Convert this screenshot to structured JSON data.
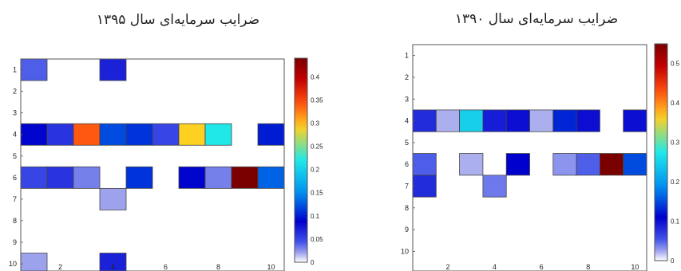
{
  "figure": {
    "colormap": [
      "#ffffff",
      "#c8c8f0",
      "#4050e8",
      "#0000cc",
      "#0090f0",
      "#20e8e8",
      "#ffd020",
      "#ff5010",
      "#c00000",
      "#7a0000"
    ]
  },
  "chart_data": [
    {
      "type": "heatmap",
      "title": "ضرایب سرمایه‌ای سال ۱۳۹۵",
      "xlabel": "",
      "ylabel": "",
      "x_ticks": [
        "2",
        "4",
        "6",
        "8",
        "10"
      ],
      "y_ticks": [
        "1",
        "2",
        "3",
        "4",
        "5",
        "6",
        "7",
        "8",
        "9",
        "10"
      ],
      "colorbar_ticks": [
        "0",
        "0.05",
        "0.1",
        "0.15",
        "0.2",
        "0.25",
        "0.3",
        "0.35",
        "0.4"
      ],
      "clim": [
        0,
        0.44
      ],
      "cells": [
        {
          "row": 1,
          "col": 1,
          "value": 0.04
        },
        {
          "row": 1,
          "col": 4,
          "value": 0.07
        },
        {
          "row": 4,
          "col": 1,
          "value": 0.09
        },
        {
          "row": 4,
          "col": 2,
          "value": 0.06
        },
        {
          "row": 4,
          "col": 3,
          "value": 0.34
        },
        {
          "row": 4,
          "col": 4,
          "value": 0.12
        },
        {
          "row": 4,
          "col": 5,
          "value": 0.11
        },
        {
          "row": 4,
          "col": 6,
          "value": 0.05
        },
        {
          "row": 4,
          "col": 7,
          "value": 0.29
        },
        {
          "row": 4,
          "col": 8,
          "value": 0.22
        },
        {
          "row": 4,
          "col": 10,
          "value": 0.1
        },
        {
          "row": 6,
          "col": 1,
          "value": 0.05
        },
        {
          "row": 6,
          "col": 2,
          "value": 0.06
        },
        {
          "row": 6,
          "col": 3,
          "value": 0.03
        },
        {
          "row": 6,
          "col": 5,
          "value": 0.11
        },
        {
          "row": 6,
          "col": 7,
          "value": 0.09
        },
        {
          "row": 6,
          "col": 8,
          "value": 0.03
        },
        {
          "row": 6,
          "col": 9,
          "value": 0.44
        },
        {
          "row": 6,
          "col": 10,
          "value": 0.13
        },
        {
          "row": 7,
          "col": 4,
          "value": 0.02
        },
        {
          "row": 10,
          "col": 1,
          "value": 0.02
        },
        {
          "row": 10,
          "col": 4,
          "value": 0.07
        }
      ]
    },
    {
      "type": "heatmap",
      "title": "ضرایب سرمایه‌ای سال ۱۳۹۰",
      "xlabel": "",
      "ylabel": "",
      "x_ticks": [
        "2",
        "4",
        "6",
        "8",
        "10"
      ],
      "y_ticks": [
        "1",
        "2",
        "3",
        "4",
        "5",
        "6",
        "7",
        "8",
        "9",
        "10"
      ],
      "colorbar_ticks": [
        "0",
        "0.1",
        "0.2",
        "0.3",
        "0.4",
        "0.5"
      ],
      "clim": [
        0,
        0.55
      ],
      "cells": [
        {
          "row": 4,
          "col": 1,
          "value": 0.08
        },
        {
          "row": 4,
          "col": 2,
          "value": 0.02
        },
        {
          "row": 4,
          "col": 3,
          "value": 0.25
        },
        {
          "row": 4,
          "col": 4,
          "value": 0.09
        },
        {
          "row": 4,
          "col": 5,
          "value": 0.1
        },
        {
          "row": 4,
          "col": 6,
          "value": 0.02
        },
        {
          "row": 4,
          "col": 7,
          "value": 0.13
        },
        {
          "row": 4,
          "col": 8,
          "value": 0.1
        },
        {
          "row": 4,
          "col": 10,
          "value": 0.1
        },
        {
          "row": 6,
          "col": 1,
          "value": 0.05
        },
        {
          "row": 6,
          "col": 3,
          "value": 0.02
        },
        {
          "row": 6,
          "col": 5,
          "value": 0.11
        },
        {
          "row": 6,
          "col": 7,
          "value": 0.03
        },
        {
          "row": 6,
          "col": 8,
          "value": 0.05
        },
        {
          "row": 6,
          "col": 9,
          "value": 0.55
        },
        {
          "row": 6,
          "col": 10,
          "value": 0.15
        },
        {
          "row": 7,
          "col": 1,
          "value": 0.08
        },
        {
          "row": 7,
          "col": 4,
          "value": 0.04
        }
      ]
    }
  ]
}
